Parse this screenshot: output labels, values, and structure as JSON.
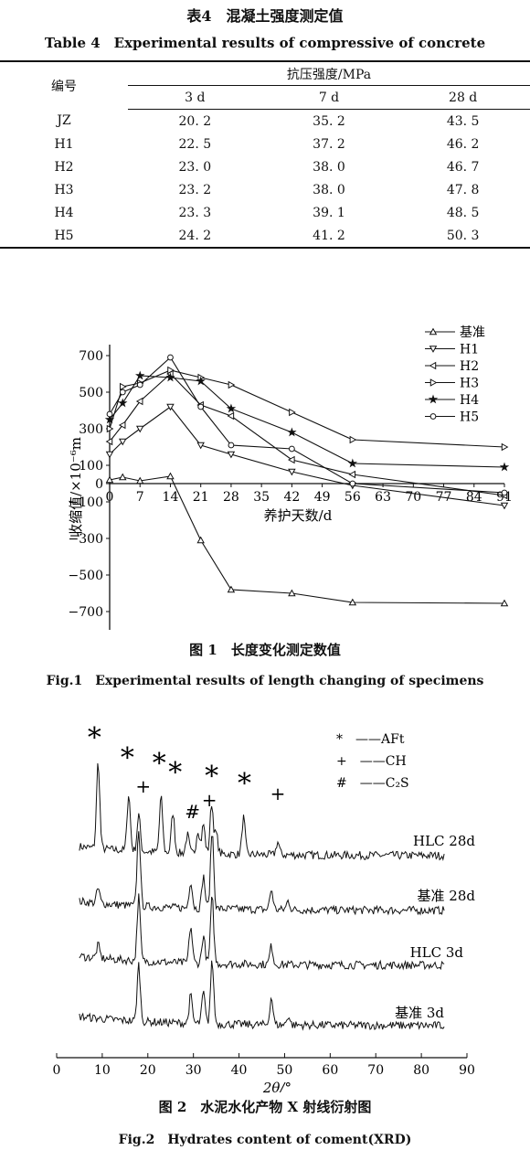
{
  "table": {
    "title_cn": "表4　混凝土强度测定值",
    "title_en": "Table 4　Experimental results of compressive of concrete",
    "col_id": "编号",
    "col_group": "抗压强度/MPa",
    "cols": [
      "3 d",
      "7 d",
      "28 d"
    ],
    "rows": [
      {
        "id": "JZ",
        "v": [
          "20. 2",
          "35. 2",
          "43. 5"
        ]
      },
      {
        "id": "H1",
        "v": [
          "22. 5",
          "37. 2",
          "46. 2"
        ]
      },
      {
        "id": "H2",
        "v": [
          "23. 0",
          "38. 0",
          "46. 7"
        ]
      },
      {
        "id": "H3",
        "v": [
          "23. 2",
          "38. 0",
          "47. 8"
        ]
      },
      {
        "id": "H4",
        "v": [
          "23. 3",
          "39. 1",
          "48. 5"
        ]
      },
      {
        "id": "H5",
        "v": [
          "24. 2",
          "41. 2",
          "50. 3"
        ]
      }
    ]
  },
  "fig1": {
    "caption_cn": "图 1　长度变化测定数值",
    "caption_en": "Fig.1　Experimental results of length changing of specimens"
  },
  "fig2": {
    "caption_cn": "图 2　水泥水化产物 X 射线衍射图",
    "caption_en": "Fig.2　Hydrates content of coment(XRD)"
  },
  "chart_data": [
    {
      "type": "line",
      "title": "",
      "xlabel": "养护天数/d",
      "ylabel": "收缩值/×10⁻⁶m",
      "xlim": [
        0,
        91
      ],
      "ylim": [
        -800,
        760
      ],
      "xticks": [
        0,
        7,
        14,
        21,
        28,
        35,
        42,
        49,
        56,
        63,
        70,
        77,
        84,
        91
      ],
      "yticks": [
        -700,
        -500,
        -300,
        -100,
        0,
        100,
        300,
        500,
        700
      ],
      "legend": "top-right",
      "series": [
        {
          "name": "基准",
          "marker": "triangle-up",
          "x": [
            0,
            3,
            7,
            14,
            21,
            28,
            42,
            56,
            91
          ],
          "y": [
            20,
            35,
            15,
            40,
            -310,
            -580,
            -600,
            -650,
            -655
          ]
        },
        {
          "name": "H1",
          "marker": "triangle-down",
          "x": [
            0,
            3,
            7,
            14,
            21,
            28,
            42,
            56,
            91
          ],
          "y": [
            160,
            230,
            300,
            420,
            210,
            160,
            65,
            -10,
            -120
          ]
        },
        {
          "name": "H2",
          "marker": "triangle-left",
          "x": [
            0,
            3,
            7,
            14,
            21,
            28,
            42,
            56,
            91
          ],
          "y": [
            230,
            320,
            450,
            600,
            430,
            370,
            130,
            50,
            -65
          ]
        },
        {
          "name": "H3",
          "marker": "triangle-right",
          "x": [
            0,
            3,
            7,
            14,
            21,
            28,
            42,
            56,
            91
          ],
          "y": [
            300,
            530,
            550,
            620,
            580,
            540,
            390,
            240,
            200
          ]
        },
        {
          "name": "H4",
          "marker": "star",
          "x": [
            0,
            3,
            7,
            14,
            21,
            28,
            42,
            56,
            91
          ],
          "y": [
            350,
            440,
            590,
            580,
            560,
            410,
            280,
            110,
            90
          ]
        },
        {
          "name": "H5",
          "marker": "circle",
          "x": [
            0,
            3,
            7,
            14,
            21,
            28,
            42,
            56,
            91
          ],
          "y": [
            380,
            500,
            540,
            690,
            420,
            210,
            190,
            0,
            -50
          ]
        }
      ]
    },
    {
      "type": "line",
      "title": "",
      "xlabel": "2θ/°",
      "ylabel": "",
      "xlim": [
        0,
        90
      ],
      "xticks": [
        0,
        10,
        20,
        30,
        40,
        50,
        60,
        70,
        80,
        90
      ],
      "legend": "top-right",
      "legend_entries": [
        "*　——AFt",
        "+　——CH",
        "#　——C₂S"
      ],
      "series": [
        {
          "name": "HLC 28d",
          "peaks": [
            {
              "x": 9.1,
              "h": 95
            },
            {
              "x": 15.8,
              "h": 62
            },
            {
              "x": 18.0,
              "h": 40
            },
            {
              "x": 22.9,
              "h": 60
            },
            {
              "x": 25.5,
              "h": 44
            },
            {
              "x": 28.7,
              "h": 20
            },
            {
              "x": 31.0,
              "h": 26
            },
            {
              "x": 32.2,
              "h": 32
            },
            {
              "x": 34.0,
              "h": 55
            },
            {
              "x": 35.0,
              "h": 22
            },
            {
              "x": 41.0,
              "h": 40
            },
            {
              "x": 48.5,
              "h": 14
            }
          ]
        },
        {
          "name": "基准 28d",
          "peaks": [
            {
              "x": 9.1,
              "h": 16
            },
            {
              "x": 18.0,
              "h": 85
            },
            {
              "x": 29.4,
              "h": 30
            },
            {
              "x": 32.2,
              "h": 35
            },
            {
              "x": 34.1,
              "h": 85
            },
            {
              "x": 47.1,
              "h": 22
            },
            {
              "x": 50.8,
              "h": 10
            }
          ]
        },
        {
          "name": "HLC 3d",
          "peaks": [
            {
              "x": 9.1,
              "h": 14
            },
            {
              "x": 18.0,
              "h": 70
            },
            {
              "x": 29.4,
              "h": 40
            },
            {
              "x": 32.2,
              "h": 30
            },
            {
              "x": 34.1,
              "h": 72
            },
            {
              "x": 47.1,
              "h": 20
            }
          ]
        },
        {
          "name": "基准 3d",
          "peaks": [
            {
              "x": 18.0,
              "h": 62
            },
            {
              "x": 29.4,
              "h": 30
            },
            {
              "x": 32.2,
              "h": 34
            },
            {
              "x": 34.1,
              "h": 68
            },
            {
              "x": 47.1,
              "h": 30
            },
            {
              "x": 50.8,
              "h": 10
            }
          ]
        }
      ],
      "annotations": [
        {
          "symbol": "*",
          "x": 8.3,
          "row": 0,
          "dy": -62
        },
        {
          "symbol": "*",
          "x": 15.5,
          "row": 0,
          "dy": -40
        },
        {
          "symbol": "+",
          "x": 19.0,
          "row": 0,
          "dy": -12
        },
        {
          "symbol": "*",
          "x": 22.5,
          "row": 0,
          "dy": -34
        },
        {
          "symbol": "*",
          "x": 26.0,
          "row": 0,
          "dy": -24
        },
        {
          "symbol": "#",
          "x": 29.8,
          "row": 0,
          "dy": 16
        },
        {
          "symbol": "+",
          "x": 33.5,
          "row": 0,
          "dy": 3
        },
        {
          "symbol": "*",
          "x": 34.0,
          "row": 0,
          "dy": -20
        },
        {
          "symbol": "*",
          "x": 41.2,
          "row": 0,
          "dy": -12
        },
        {
          "symbol": "+",
          "x": 48.5,
          "row": 0,
          "dy": -4
        }
      ]
    }
  ]
}
